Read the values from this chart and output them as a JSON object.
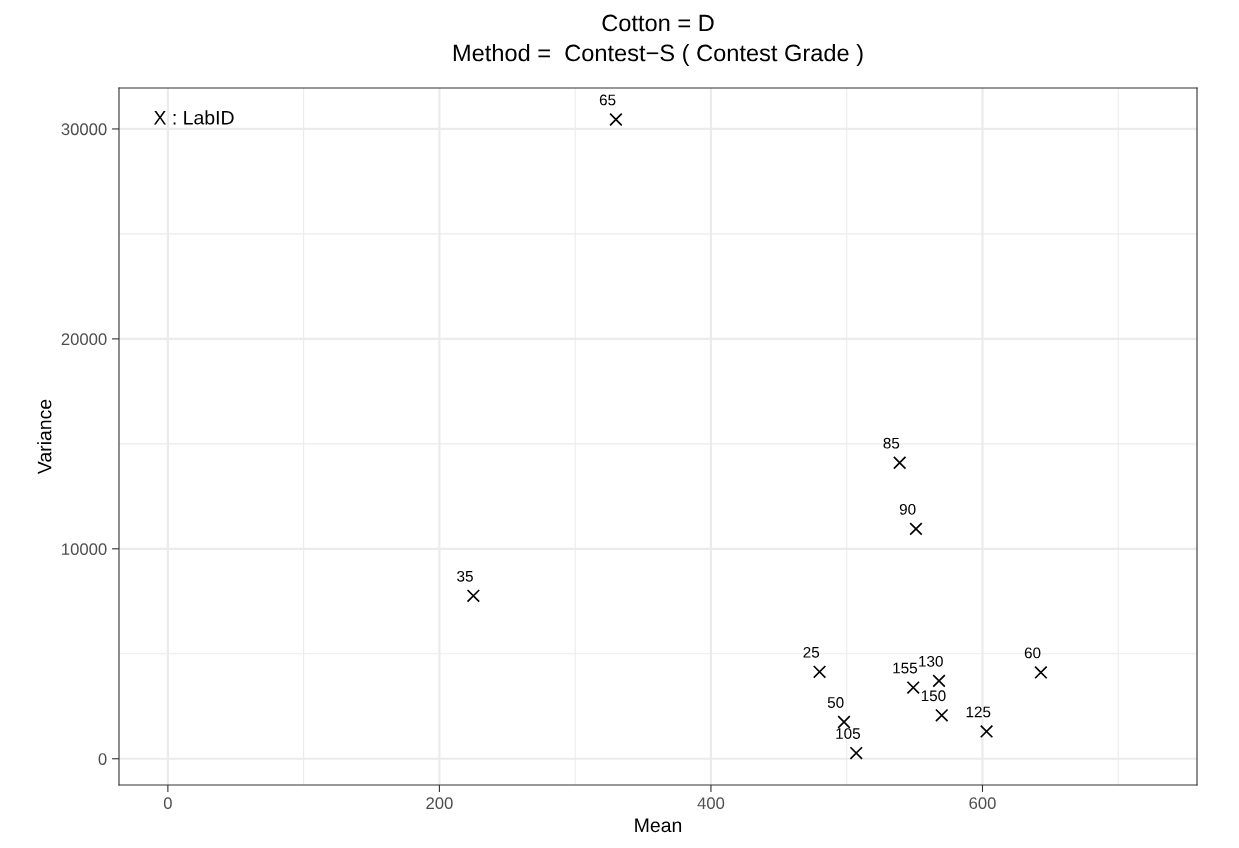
{
  "chart_data": {
    "type": "scatter",
    "title": "Cotton = D",
    "subtitle": "Method =  Contest−S ( Contest Grade )",
    "xlabel": "Mean",
    "ylabel": "Variance",
    "annotations": [
      "X : LabID",
      {
        "text": "65",
        "x": 330,
        "y": 30450
      },
      {
        "text": "35",
        "x": 225,
        "y": 7760
      },
      {
        "text": "85",
        "x": 539,
        "y": 14100
      },
      {
        "text": "90",
        "x": 551,
        "y": 10950
      },
      {
        "text": "25",
        "x": 480,
        "y": 4140
      },
      {
        "text": "50",
        "x": 498,
        "y": 1750
      },
      {
        "text": "105",
        "x": 507,
        "y": 270
      },
      {
        "text": "155",
        "x": 549,
        "y": 3390
      },
      {
        "text": "130",
        "x": 568,
        "y": 3710
      },
      {
        "text": "150",
        "x": 570,
        "y": 2070
      },
      {
        "text": "125",
        "x": 603,
        "y": 1300
      },
      {
        "text": "60",
        "x": 643,
        "y": 4110
      }
    ],
    "x": [
      330,
      225,
      539,
      551,
      480,
      498,
      507,
      549,
      568,
      570,
      603,
      643
    ],
    "values": [
      30450,
      7760,
      14100,
      10950,
      4140,
      1750,
      270,
      3390,
      3710,
      2070,
      1300,
      4110
    ],
    "color": "#000000",
    "marker": "cross",
    "xlim": [
      -36,
      758
    ],
    "ylim": [
      -1250,
      31950
    ],
    "xticks": [
      0,
      200,
      400,
      600
    ],
    "yticks": [
      0,
      10000,
      20000,
      30000
    ],
    "grid": true
  }
}
